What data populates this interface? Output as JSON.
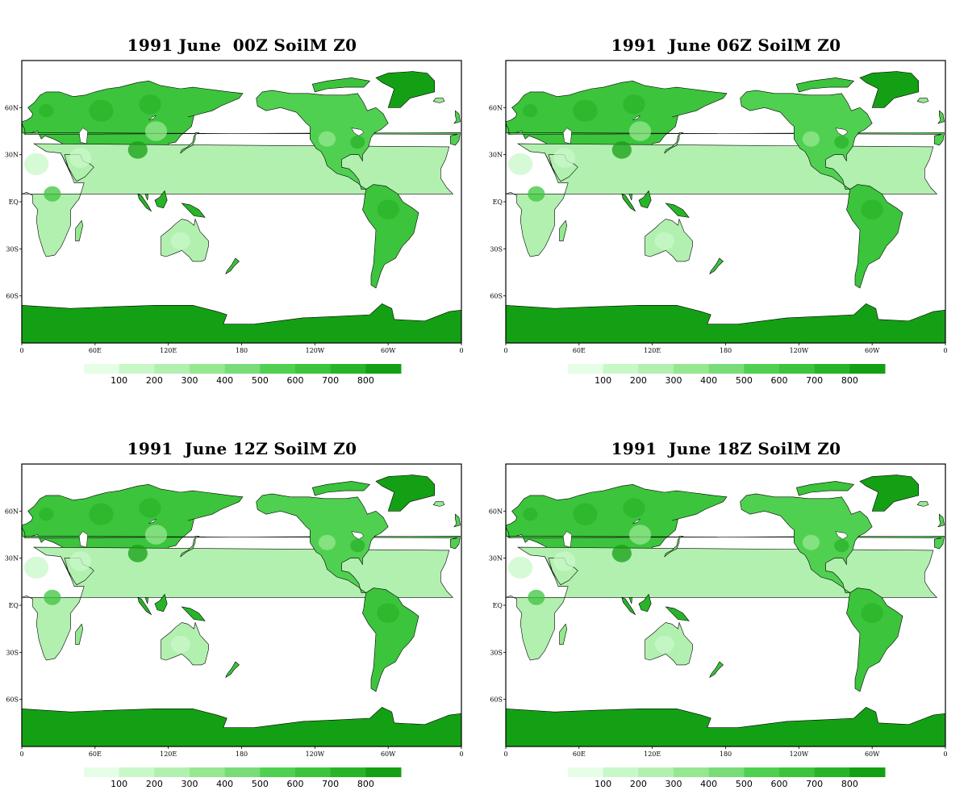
{
  "panels": [
    {
      "title": "1991 June  00Z SoilM Z0"
    },
    {
      "title": "1991  June 06Z SoilM Z0"
    },
    {
      "title": "1991  June 12Z SoilM Z0"
    },
    {
      "title": "1991  June 18Z SoilM Z0"
    }
  ],
  "map": {
    "projection": "latlon",
    "lon_range": [
      0,
      360
    ],
    "lat_range": [
      -90,
      90
    ],
    "lon_ticks": [
      {
        "value": 0,
        "label": "0"
      },
      {
        "value": 60,
        "label": "60E"
      },
      {
        "value": 120,
        "label": "120E"
      },
      {
        "value": 180,
        "label": "180"
      },
      {
        "value": 240,
        "label": "120W"
      },
      {
        "value": 300,
        "label": "60W"
      },
      {
        "value": 360,
        "label": "0"
      }
    ],
    "lat_ticks": [
      {
        "value": 60,
        "label": "60N"
      },
      {
        "value": 30,
        "label": "30N"
      },
      {
        "value": 0,
        "label": "EQ"
      },
      {
        "value": -30,
        "label": "30S"
      },
      {
        "value": -60,
        "label": "60S"
      }
    ]
  },
  "colorbar": {
    "labels": [
      "100",
      "200",
      "300",
      "400",
      "500",
      "600",
      "700",
      "800"
    ],
    "colors": [
      "#e6fee6",
      "#c8f8c8",
      "#b2f0b0",
      "#96e890",
      "#78dd78",
      "#50d050",
      "#3cc43c",
      "#28b428",
      "#14a014"
    ]
  },
  "colors": {
    "ocean": "#ffffff",
    "coast": "#000000",
    "antarctica": "#14a014"
  }
}
